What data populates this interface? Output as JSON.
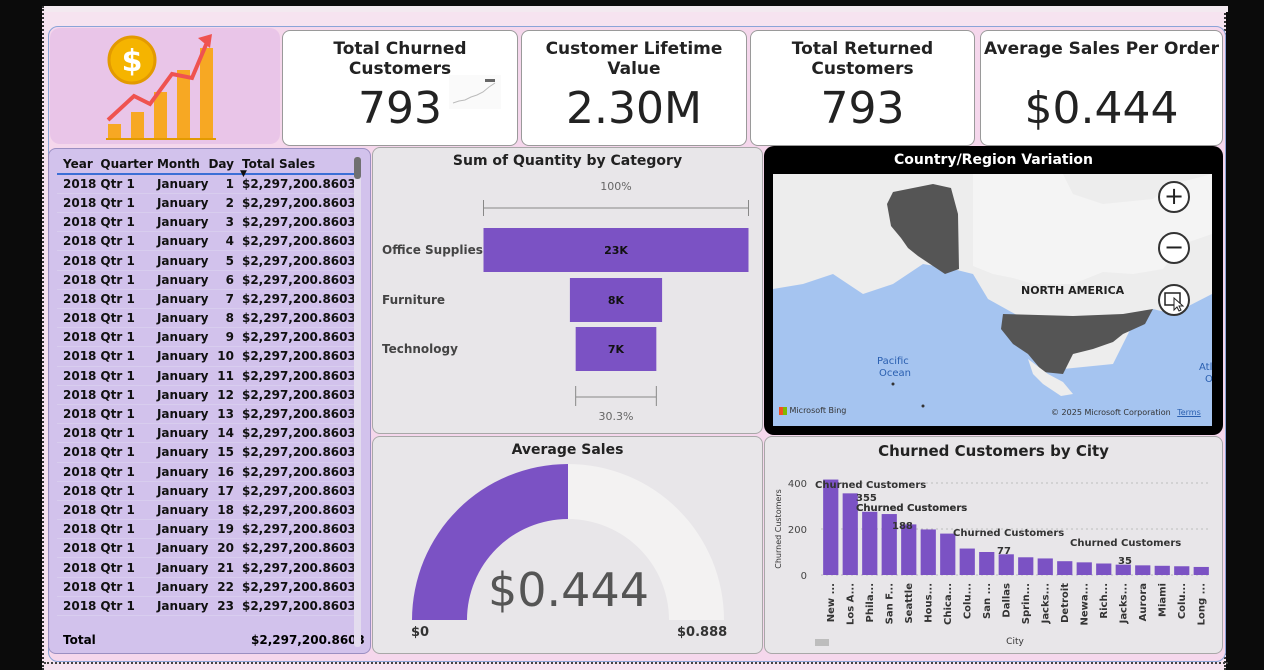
{
  "kpis": [
    {
      "title": "Total Churned Customers",
      "value": "793"
    },
    {
      "title": "Customer Lifetime Value",
      "value": "2.30M"
    },
    {
      "title": "Total Returned Customers",
      "value": "793"
    },
    {
      "title": "Average Sales Per Order",
      "value": "$0.444"
    }
  ],
  "matrix": {
    "headers": [
      "Year",
      "Quarter",
      "Month",
      "Day",
      "Total Sales"
    ],
    "rows": [
      [
        "2018",
        "Qtr 1",
        "January",
        "1",
        "$2,297,200.8603"
      ],
      [
        "2018",
        "Qtr 1",
        "January",
        "2",
        "$2,297,200.8603"
      ],
      [
        "2018",
        "Qtr 1",
        "January",
        "3",
        "$2,297,200.8603"
      ],
      [
        "2018",
        "Qtr 1",
        "January",
        "4",
        "$2,297,200.8603"
      ],
      [
        "2018",
        "Qtr 1",
        "January",
        "5",
        "$2,297,200.8603"
      ],
      [
        "2018",
        "Qtr 1",
        "January",
        "6",
        "$2,297,200.8603"
      ],
      [
        "2018",
        "Qtr 1",
        "January",
        "7",
        "$2,297,200.8603"
      ],
      [
        "2018",
        "Qtr 1",
        "January",
        "8",
        "$2,297,200.8603"
      ],
      [
        "2018",
        "Qtr 1",
        "January",
        "9",
        "$2,297,200.8603"
      ],
      [
        "2018",
        "Qtr 1",
        "January",
        "10",
        "$2,297,200.8603"
      ],
      [
        "2018",
        "Qtr 1",
        "January",
        "11",
        "$2,297,200.8603"
      ],
      [
        "2018",
        "Qtr 1",
        "January",
        "12",
        "$2,297,200.8603"
      ],
      [
        "2018",
        "Qtr 1",
        "January",
        "13",
        "$2,297,200.8603"
      ],
      [
        "2018",
        "Qtr 1",
        "January",
        "14",
        "$2,297,200.8603"
      ],
      [
        "2018",
        "Qtr 1",
        "January",
        "15",
        "$2,297,200.8603"
      ],
      [
        "2018",
        "Qtr 1",
        "January",
        "16",
        "$2,297,200.8603"
      ],
      [
        "2018",
        "Qtr 1",
        "January",
        "17",
        "$2,297,200.8603"
      ],
      [
        "2018",
        "Qtr 1",
        "January",
        "18",
        "$2,297,200.8603"
      ],
      [
        "2018",
        "Qtr 1",
        "January",
        "19",
        "$2,297,200.8603"
      ],
      [
        "2018",
        "Qtr 1",
        "January",
        "20",
        "$2,297,200.8603"
      ],
      [
        "2018",
        "Qtr 1",
        "January",
        "21",
        "$2,297,200.8603"
      ],
      [
        "2018",
        "Qtr 1",
        "January",
        "22",
        "$2,297,200.8603"
      ],
      [
        "2018",
        "Qtr 1",
        "January",
        "23",
        "$2,297,200.8603"
      ]
    ],
    "total_label": "Total",
    "total_value": "$2,297,200.8603"
  },
  "funnel": {
    "title": "Sum of Quantity by Category",
    "top_pct": "100%",
    "bottom_pct": "30.3%",
    "categories": [
      "Office Supplies",
      "Furniture",
      "Technology"
    ],
    "labels": [
      "23K",
      "8K",
      "7K"
    ],
    "values": [
      23000,
      8000,
      7000
    ],
    "bar_color": "#7b52c4"
  },
  "map": {
    "title": "Country/Region Variation",
    "region_label": "NORTH AMERICA",
    "ocean_label_1": "Pacific",
    "ocean_label_2": "Ocean",
    "edge_label_1": "Atl",
    "edge_label_2": "O",
    "attribution": "Microsoft Bing",
    "copyright": "© 2025 Microsoft Corporation",
    "terms": "Terms",
    "zoom_in": "+",
    "zoom_out": "−"
  },
  "gauge": {
    "title": "Average Sales",
    "value": 0.444,
    "min": 0,
    "max": 0.888,
    "value_label": "$0.444",
    "min_label": "$0",
    "max_label": "$0.888",
    "fill_color": "#7b52c4",
    "track_color": "#f3f2f2"
  },
  "chart_data": {
    "type": "bar",
    "title": "Churned Customers by City",
    "xlabel": "City",
    "ylabel": "Churned Customers",
    "ylim": [
      0,
      400
    ],
    "yticks": [
      0,
      200,
      400
    ],
    "categories": [
      "New ...",
      "Los A...",
      "Phila...",
      "San F...",
      "Seattle",
      "Hous...",
      "Chica...",
      "Colu...",
      "San ...",
      "Dallas",
      "Sprin...",
      "Jacks...",
      "Detroit",
      "Newa...",
      "Rich...",
      "Jacks...",
      "Aurora",
      "Miami",
      "Colu...",
      "Long ..."
    ],
    "values": [
      415,
      355,
      275,
      265,
      220,
      198,
      180,
      115,
      100,
      90,
      77,
      72,
      60,
      55,
      50,
      45,
      42,
      40,
      38,
      35
    ],
    "annotations": [
      {
        "series_label": "Churned Customers",
        "value_label": ""
      },
      {
        "series_label": "Churned Customers",
        "value_label": "355"
      },
      {
        "series_label": "Churned Customers",
        "value_label": "188"
      },
      {
        "series_label": "Churned Customers",
        "value_label": "77"
      },
      {
        "series_label": "Churned Customers",
        "value_label": "35"
      }
    ],
    "bar_color": "#7b52c4",
    "grid": true
  }
}
